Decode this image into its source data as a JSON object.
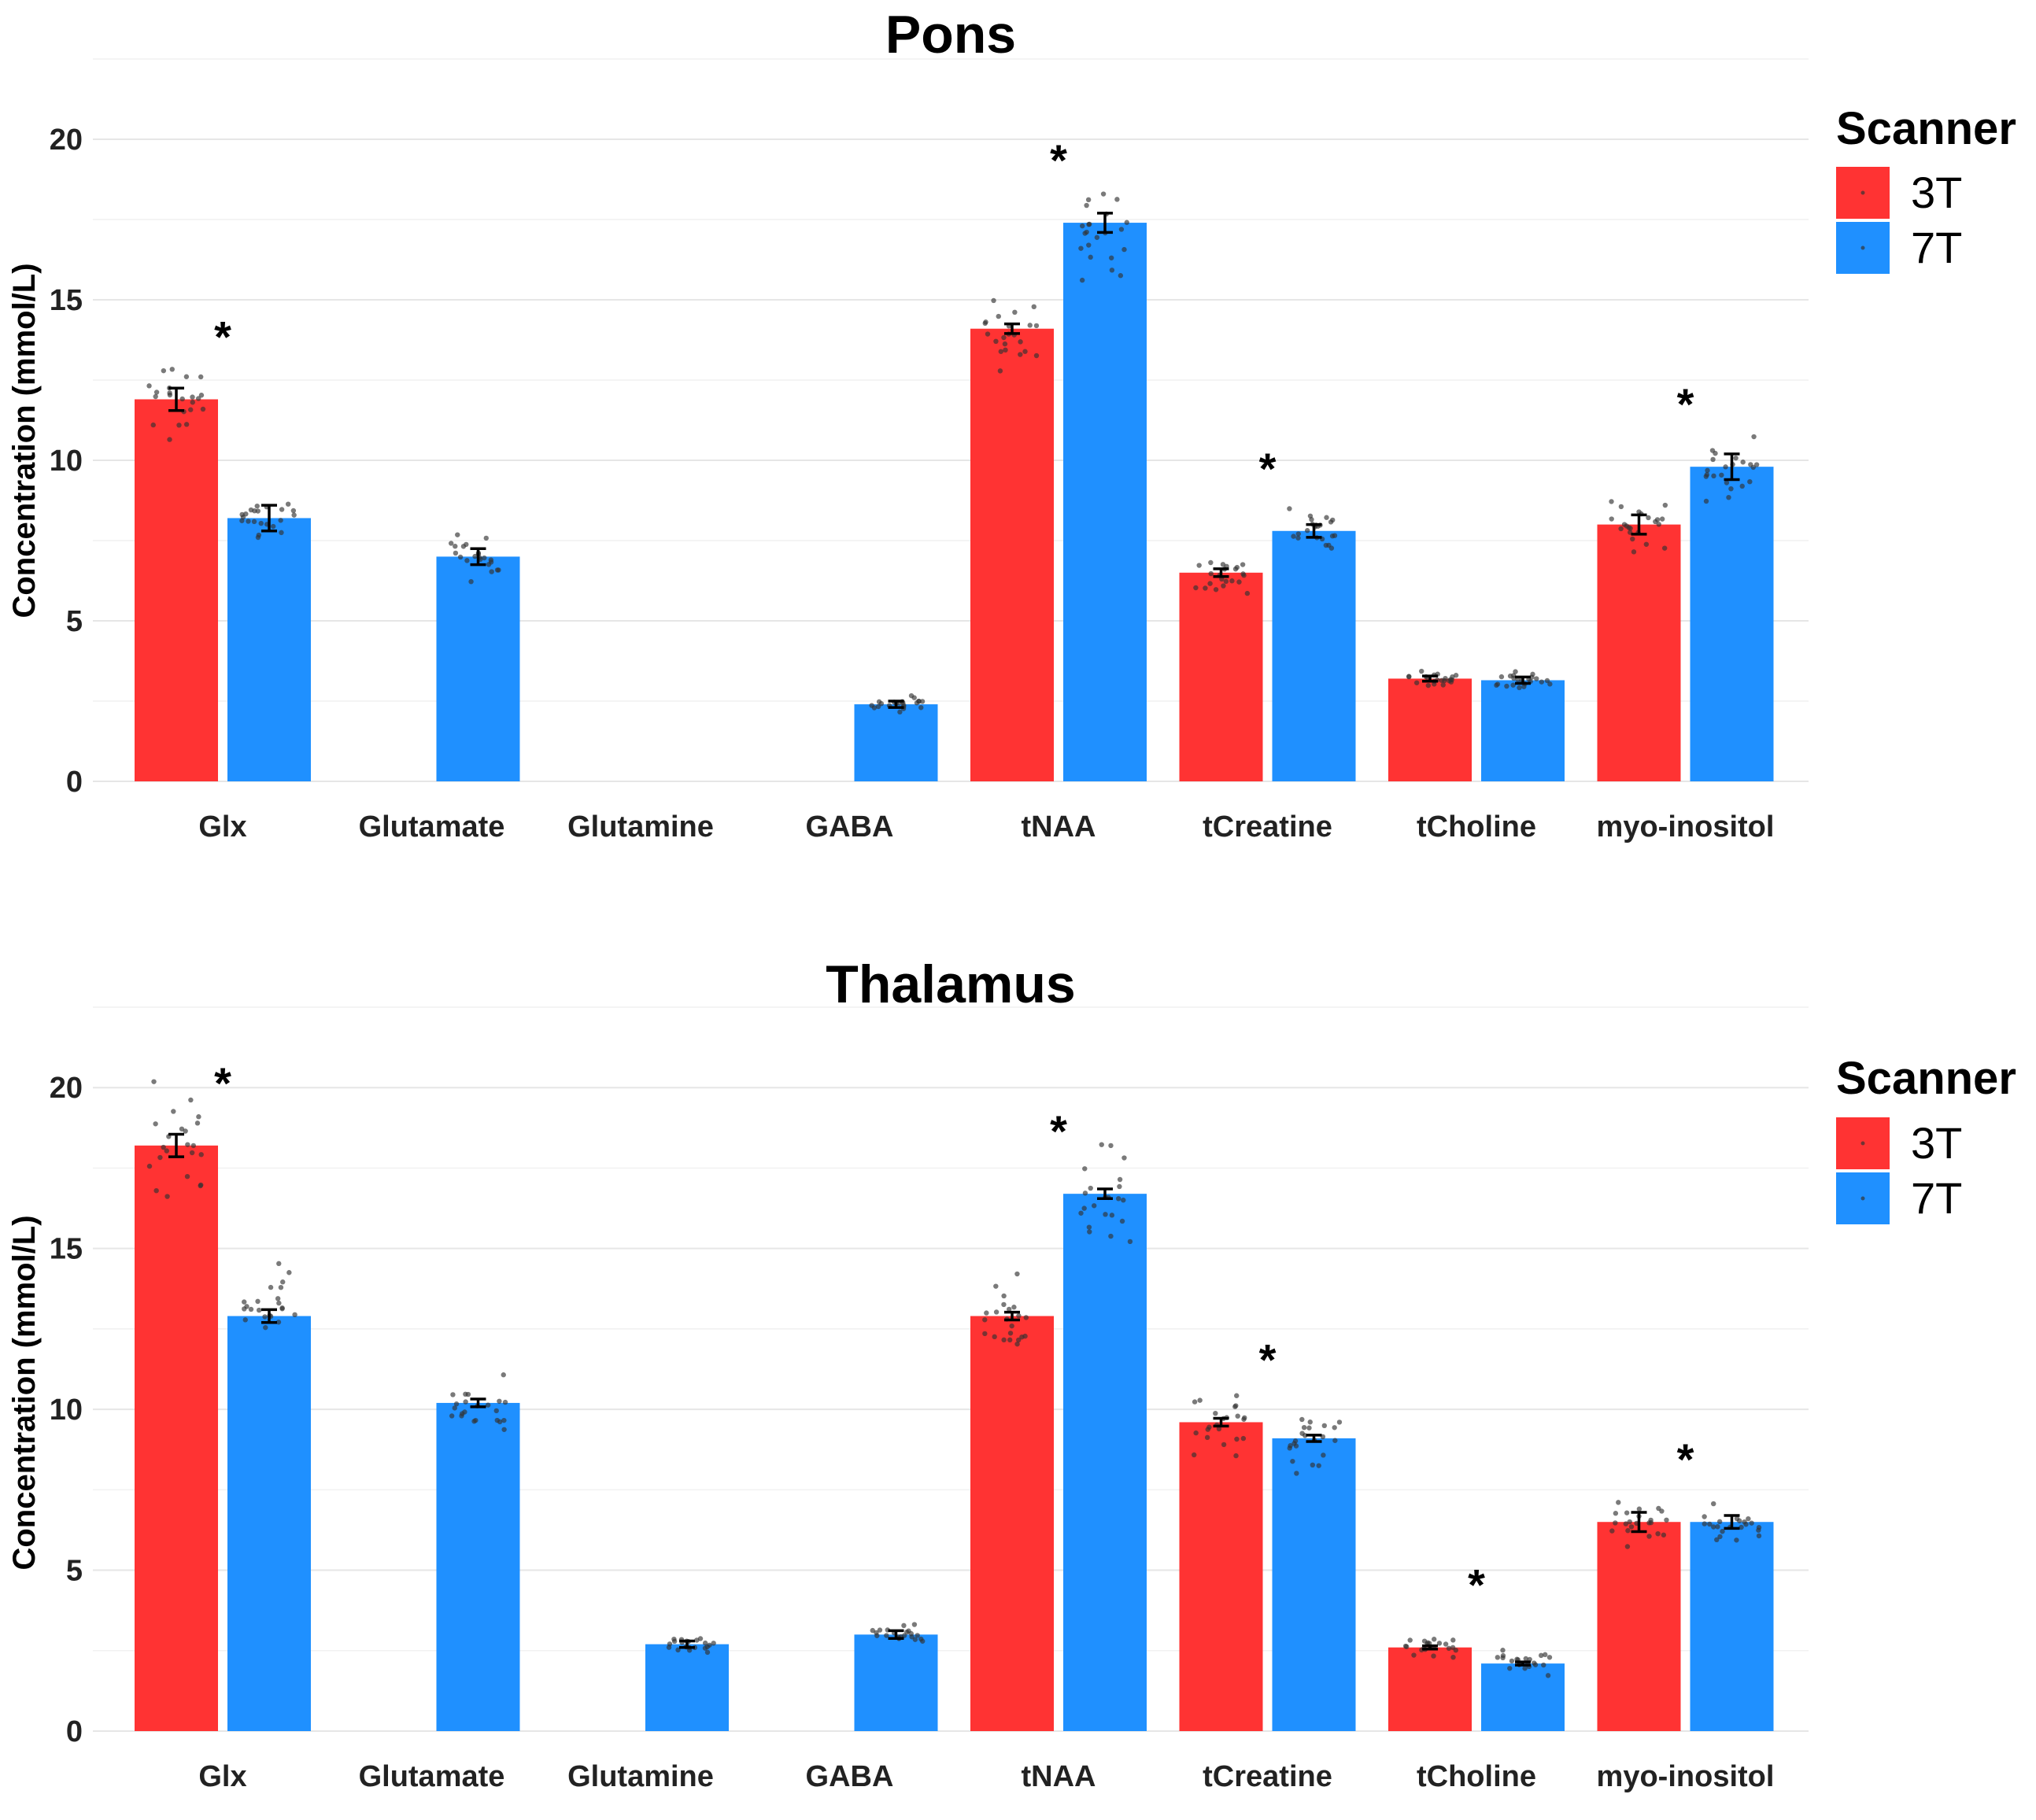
{
  "chart_data": [
    {
      "type": "bar",
      "title": "Pons",
      "ylabel": "Concentration (mmol/L)",
      "xlabel": "",
      "ylim": [
        0,
        22.5
      ],
      "yticks": [
        0,
        5,
        10,
        15,
        20
      ],
      "categories": [
        "Glx",
        "Glutamate",
        "Glutamine",
        "GABA",
        "tNAA",
        "tCreatine",
        "tCholine",
        "myo-inositol"
      ],
      "legend_title": "Scanner",
      "series": [
        {
          "name": "3T",
          "color": "#ff3333",
          "values": [
            11.9,
            null,
            null,
            null,
            14.1,
            6.5,
            3.2,
            8.0
          ],
          "errors": [
            0.35,
            null,
            null,
            null,
            0.15,
            0.12,
            0.08,
            0.3
          ]
        },
        {
          "name": "7T",
          "color": "#1f90ff",
          "values": [
            8.2,
            7.0,
            null,
            2.4,
            17.4,
            7.8,
            3.15,
            9.8
          ],
          "errors": [
            0.4,
            0.25,
            null,
            0.1,
            0.3,
            0.2,
            0.1,
            0.4
          ]
        }
      ],
      "significant": [
        true,
        false,
        false,
        false,
        true,
        true,
        false,
        true
      ]
    },
    {
      "type": "bar",
      "title": "Thalamus",
      "ylabel": "Concentration (mmol/L)",
      "xlabel": "",
      "ylim": [
        0,
        22.5
      ],
      "yticks": [
        0,
        5,
        10,
        15,
        20
      ],
      "categories": [
        "Glx",
        "Glutamate",
        "Glutamine",
        "GABA",
        "tNAA",
        "tCreatine",
        "tCholine",
        "myo-inositol"
      ],
      "legend_title": "Scanner",
      "series": [
        {
          "name": "3T",
          "color": "#ff3333",
          "values": [
            18.2,
            null,
            null,
            null,
            12.9,
            9.6,
            2.6,
            6.5
          ],
          "errors": [
            0.35,
            null,
            null,
            null,
            0.12,
            0.12,
            0.05,
            0.3
          ]
        },
        {
          "name": "7T",
          "color": "#1f90ff",
          "values": [
            12.9,
            10.2,
            2.7,
            3.0,
            16.7,
            9.1,
            2.1,
            6.5
          ],
          "errors": [
            0.2,
            0.12,
            0.1,
            0.12,
            0.15,
            0.1,
            0.05,
            0.2
          ]
        }
      ],
      "significant": [
        true,
        false,
        false,
        false,
        true,
        true,
        true,
        true
      ]
    }
  ]
}
